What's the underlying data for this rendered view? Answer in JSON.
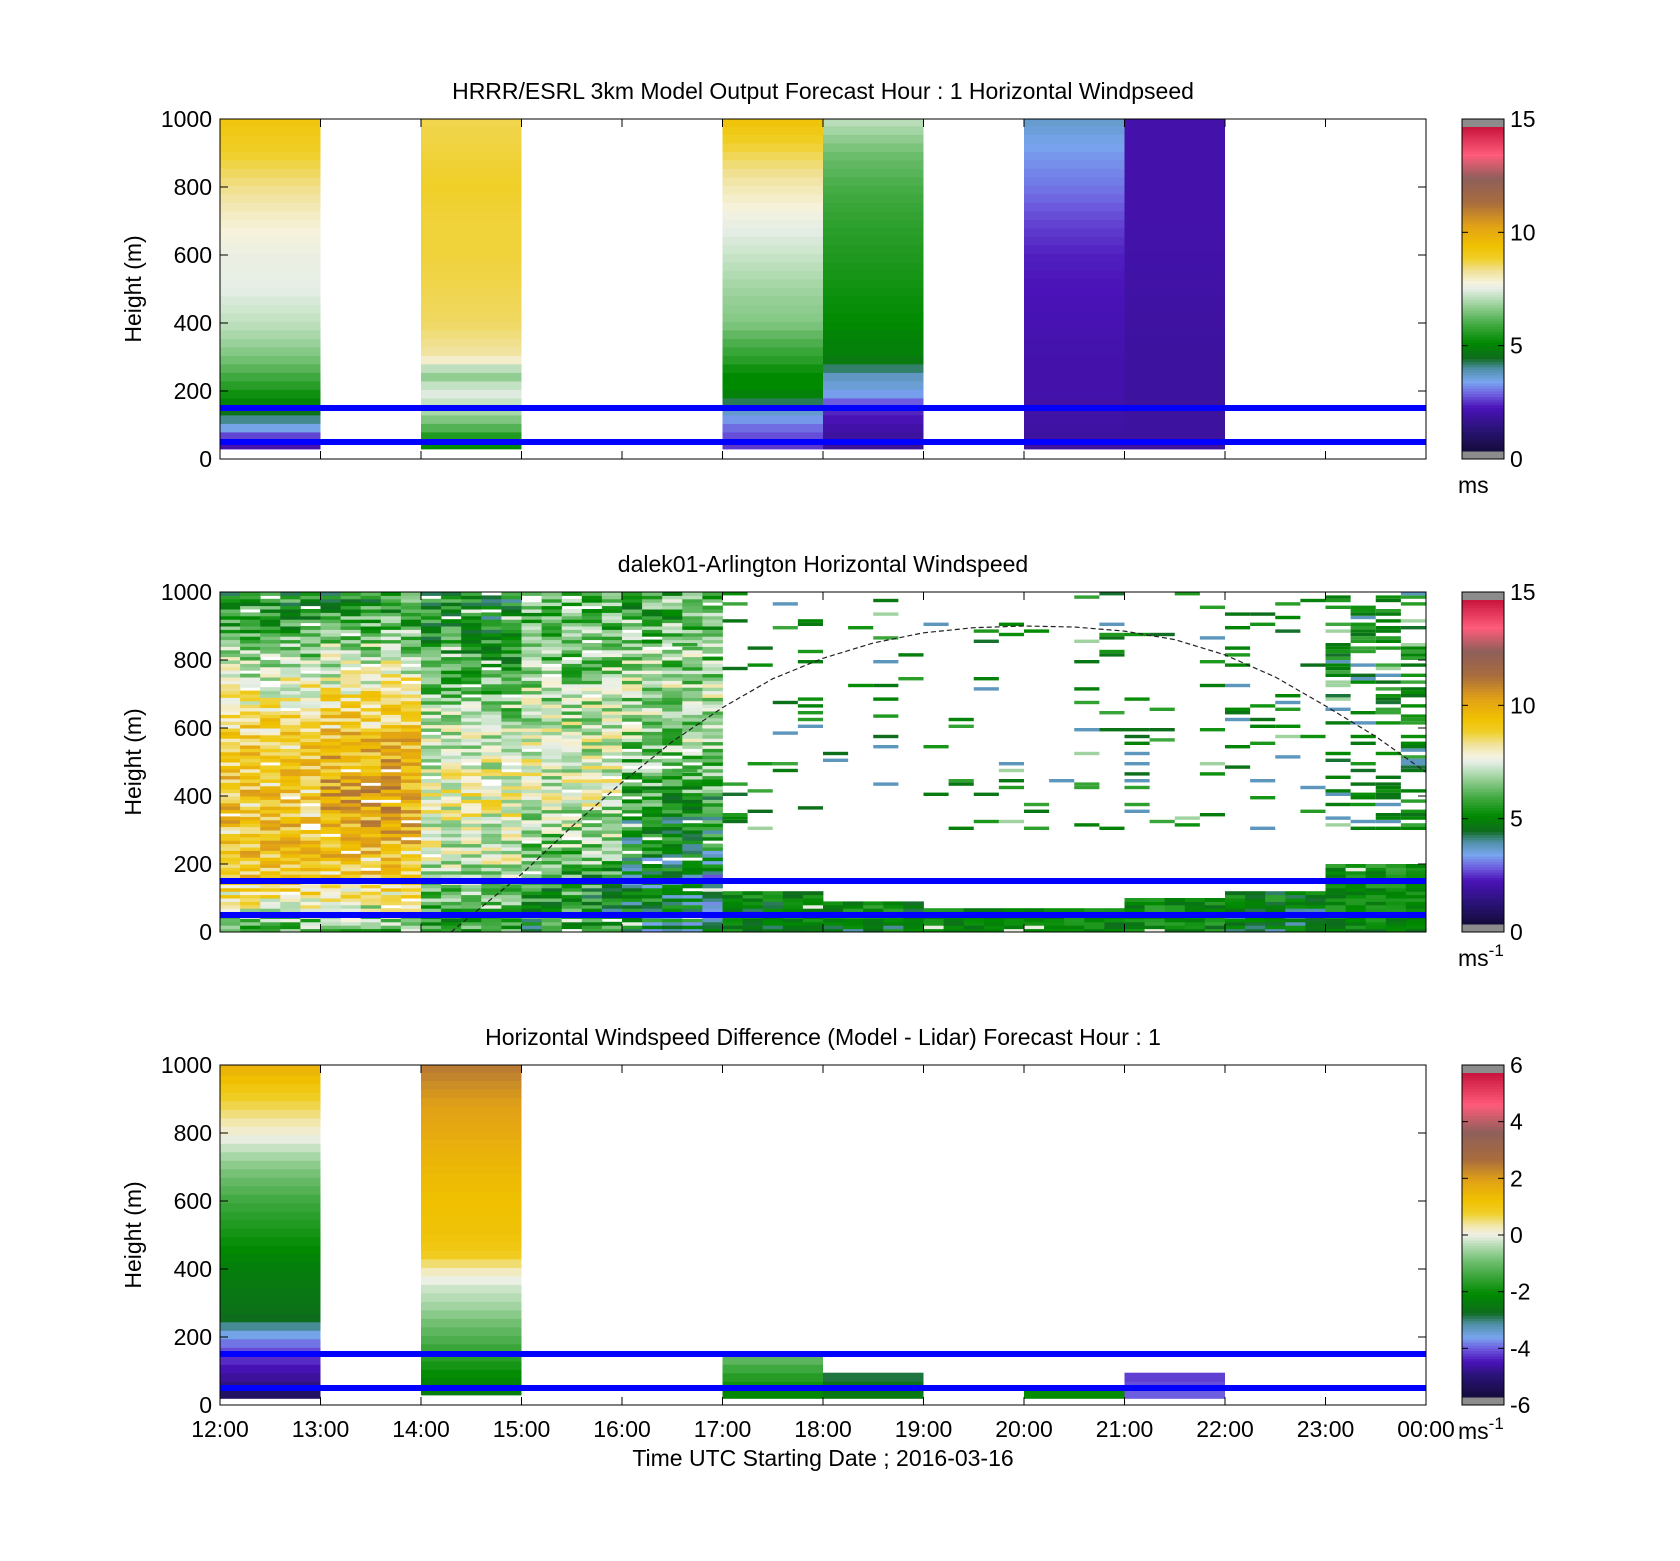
{
  "figure": {
    "xlabel": "Time UTC  Starting Date ; 2016-03-16"
  },
  "chart_data": [
    {
      "type": "heatmap",
      "title": "HRRR/ESRL 3km Model Output   Forecast Hour : 1 Horizontal Windpseed",
      "ylabel": "Height (m)",
      "ylim": [
        0,
        1000
      ],
      "yticks": [
        "0",
        "200",
        "400",
        "600",
        "800",
        "1000"
      ],
      "xlim_hours": [
        12,
        24
      ],
      "xticks": [
        "12:00",
        "13:00",
        "14:00",
        "15:00",
        "16:00",
        "17:00",
        "18:00",
        "19:00",
        "20:00",
        "21:00",
        "22:00",
        "23:00",
        "00:00"
      ],
      "show_xtick_labels": false,
      "colorbar": {
        "min": 0,
        "max": 15,
        "ticks": [
          "0",
          "5",
          "10",
          "15"
        ],
        "unit": "ms",
        "unit_sup": "",
        "scale": "speed"
      },
      "reference_lines_m": [
        50,
        150
      ],
      "sunline": false,
      "columns": [
        {
          "start_hour": 12.0,
          "end_hour": 13.0,
          "levels_m": [
            50,
            100,
            150,
            200,
            250,
            300,
            350,
            400,
            450,
            500,
            600,
            700,
            800,
            900,
            1000
          ],
          "values": [
            1.8,
            3.5,
            4.6,
            5.3,
            5.9,
            6.4,
            6.8,
            7.1,
            7.3,
            7.5,
            7.6,
            7.9,
            8.4,
            8.9,
            9.3
          ]
        },
        {
          "start_hour": 14.0,
          "end_hour": 15.0,
          "levels_m": [
            50,
            100,
            150,
            200,
            250,
            300,
            350,
            400,
            500,
            600,
            700,
            800,
            900,
            1000
          ],
          "values": [
            5.0,
            6.2,
            7.0,
            7.5,
            6.5,
            8.2,
            8.4,
            8.6,
            8.7,
            8.8,
            8.8,
            8.9,
            8.8,
            8.7
          ]
        },
        {
          "start_hour": 15.0,
          "end_hour": 17.0,
          "levels_m": [],
          "values": []
        },
        {
          "start_hour": 17.0,
          "end_hour": 18.0,
          "levels_m": [
            50,
            100,
            150,
            200,
            250,
            300,
            350,
            400,
            500,
            600,
            700,
            800,
            900,
            1000
          ],
          "values": [
            2.3,
            2.8,
            3.6,
            5.0,
            5.0,
            5.6,
            6.0,
            6.5,
            6.8,
            7.2,
            7.6,
            8.1,
            8.7,
            9.4
          ]
        },
        {
          "start_hour": 18.0,
          "end_hour": 19.0,
          "levels_m": [
            50,
            100,
            150,
            200,
            250,
            300,
            350,
            400,
            500,
            600,
            700,
            800,
            900,
            1000
          ],
          "values": [
            1.5,
            1.8,
            2.2,
            3.3,
            3.6,
            4.8,
            4.8,
            5.0,
            5.2,
            5.4,
            5.6,
            5.9,
            6.3,
            7.1
          ]
        },
        {
          "start_hour": 20.0,
          "end_hour": 21.0,
          "levels_m": [
            50,
            100,
            150,
            200,
            300,
            400,
            500,
            600,
            700,
            800,
            900,
            1000
          ],
          "values": [
            1.6,
            1.7,
            1.7,
            1.8,
            1.8,
            1.9,
            2.0,
            2.1,
            2.4,
            2.8,
            3.1,
            3.5
          ]
        },
        {
          "start_hour": 21.0,
          "end_hour": 22.0,
          "levels_m": [
            50,
            150,
            300,
            500,
            700,
            1000
          ],
          "values": [
            1.6,
            1.6,
            1.6,
            1.7,
            1.8,
            1.8
          ]
        }
      ]
    },
    {
      "type": "heatmap",
      "title": "dalek01-Arlington  Horizontal Windspeed",
      "ylabel": "Height (m)",
      "ylim": [
        0,
        1000
      ],
      "yticks": [
        "0",
        "200",
        "400",
        "600",
        "800",
        "1000"
      ],
      "xlim_hours": [
        12,
        24
      ],
      "xticks": [
        "12:00",
        "13:00",
        "14:00",
        "15:00",
        "16:00",
        "17:00",
        "18:00",
        "19:00",
        "20:00",
        "21:00",
        "22:00",
        "23:00",
        "00:00"
      ],
      "show_xtick_labels": false,
      "colorbar": {
        "min": 0,
        "max": 15,
        "ticks": [
          "0",
          "5",
          "10",
          "15"
        ],
        "unit": "ms",
        "unit_sup": "-1",
        "scale": "speed"
      },
      "reference_lines_m": [
        50,
        150
      ],
      "sunline": true,
      "sunline_points": [
        [
          14.3,
          0
        ],
        [
          15.0,
          170
        ],
        [
          15.5,
          310
        ],
        [
          16.0,
          440
        ],
        [
          16.5,
          560
        ],
        [
          17.0,
          660
        ],
        [
          17.5,
          745
        ],
        [
          18.0,
          805
        ],
        [
          18.5,
          850
        ],
        [
          19.0,
          880
        ],
        [
          19.5,
          895
        ],
        [
          20.0,
          900
        ],
        [
          20.5,
          897
        ],
        [
          21.0,
          885
        ],
        [
          21.5,
          860
        ],
        [
          22.0,
          815
        ],
        [
          22.5,
          750
        ],
        [
          23.0,
          665
        ],
        [
          23.5,
          575
        ],
        [
          24.0,
          470
        ]
      ],
      "profiles": [
        {
          "start_hour": 12.0,
          "end_hour": 13.0,
          "profile_m": [
            0,
            50,
            100,
            150,
            200,
            300,
            400,
            500,
            600,
            700,
            800,
            900,
            1000
          ],
          "profile_v": [
            5.8,
            7.0,
            8.3,
            9.0,
            9.3,
            9.5,
            9.4,
            9.2,
            8.9,
            8.0,
            6.8,
            5.5,
            5.2
          ],
          "noise": 1.3,
          "top_m": 1000
        },
        {
          "start_hour": 13.0,
          "end_hour": 14.0,
          "profile_m": [
            0,
            50,
            100,
            150,
            200,
            300,
            400,
            500,
            600,
            700,
            800,
            900,
            1000
          ],
          "profile_v": [
            5.6,
            7.0,
            8.2,
            8.9,
            9.3,
            9.9,
            10.2,
            9.9,
            9.2,
            8.3,
            7.2,
            6.0,
            5.2
          ],
          "noise": 1.4,
          "top_m": 1000
        },
        {
          "start_hour": 14.0,
          "end_hour": 15.0,
          "profile_m": [
            0,
            50,
            100,
            150,
            200,
            300,
            400,
            500,
            600,
            700,
            800,
            900,
            1000
          ],
          "profile_v": [
            5.4,
            5.8,
            6.3,
            6.8,
            7.2,
            7.6,
            7.9,
            7.5,
            7.0,
            6.3,
            5.6,
            5.1,
            4.9
          ],
          "noise": 1.3,
          "top_m": 1000
        },
        {
          "start_hour": 15.0,
          "end_hour": 16.0,
          "profile_m": [
            0,
            50,
            100,
            150,
            200,
            300,
            400,
            500,
            600,
            700,
            800,
            900,
            1000
          ],
          "profile_v": [
            5.1,
            5.1,
            5.4,
            5.6,
            6.0,
            6.8,
            7.4,
            7.5,
            7.2,
            6.8,
            6.4,
            6.2,
            6.0
          ],
          "noise": 1.4,
          "top_m": 1000
        },
        {
          "start_hour": 16.0,
          "end_hour": 17.0,
          "profile_m": [
            0,
            50,
            100,
            150,
            200,
            300,
            400,
            500,
            600,
            700,
            800,
            900,
            1000
          ],
          "profile_v": [
            4.5,
            4.2,
            4.6,
            3.8,
            4.5,
            5.0,
            5.6,
            6.2,
            6.8,
            7.0,
            6.6,
            6.0,
            5.6
          ],
          "noise": 1.5,
          "top_m": 1000
        },
        {
          "start_hour": 17.0,
          "end_hour": 18.0,
          "profile_m": [
            0,
            50,
            100,
            150
          ],
          "profile_v": [
            4.8,
            4.6,
            4.9,
            5.1
          ],
          "noise": 0.8,
          "top_m": 120
        },
        {
          "start_hour": 18.0,
          "end_hour": 19.0,
          "profile_m": [
            0,
            50,
            90
          ],
          "profile_v": [
            4.6,
            4.7,
            5.0
          ],
          "noise": 0.9,
          "top_m": 85
        },
        {
          "start_hour": 19.0,
          "end_hour": 20.0,
          "profile_m": [
            0,
            50,
            80
          ],
          "profile_v": [
            4.7,
            4.9,
            5.0
          ],
          "noise": 0.7,
          "top_m": 70
        },
        {
          "start_hour": 20.0,
          "end_hour": 21.0,
          "profile_m": [
            0,
            50,
            80
          ],
          "profile_v": [
            4.8,
            4.9,
            5.0
          ],
          "noise": 0.6,
          "top_m": 70
        },
        {
          "start_hour": 21.0,
          "end_hour": 22.0,
          "profile_m": [
            0,
            50,
            100
          ],
          "profile_v": [
            4.9,
            5.0,
            5.0
          ],
          "noise": 0.7,
          "top_m": 100
        },
        {
          "start_hour": 22.0,
          "end_hour": 23.0,
          "profile_m": [
            0,
            50,
            100,
            150
          ],
          "profile_v": [
            4.5,
            4.6,
            4.8,
            5.0
          ],
          "noise": 0.9,
          "top_m": 120
        },
        {
          "start_hour": 23.0,
          "end_hour": 24.0,
          "profile_m": [
            0,
            50,
            100,
            150,
            200
          ],
          "profile_v": [
            4.8,
            5.0,
            5.0,
            5.0,
            5.3
          ],
          "noise": 0.6,
          "top_m": 200
        }
      ],
      "sparse_layer": {
        "start_hour": 16.5,
        "end_hour": 24.0,
        "min_m": 300,
        "max_m": 1000,
        "default_value": 5.0
      }
    },
    {
      "type": "heatmap",
      "title": "Horizontal Windspeed Difference (Model - Lidar) Forecast Hour : 1",
      "ylabel": "Height (m)",
      "ylim": [
        0,
        1000
      ],
      "yticks": [
        "0",
        "200",
        "400",
        "600",
        "800",
        "1000"
      ],
      "xlim_hours": [
        12,
        24
      ],
      "xticks": [
        "12:00",
        "13:00",
        "14:00",
        "15:00",
        "16:00",
        "17:00",
        "18:00",
        "19:00",
        "20:00",
        "21:00",
        "22:00",
        "23:00",
        "00:00"
      ],
      "show_xtick_labels": true,
      "colorbar": {
        "min": -6,
        "max": 6,
        "ticks": [
          "-6",
          "-4",
          "-2",
          "0",
          "2",
          "4",
          "6"
        ],
        "unit": "ms",
        "unit_sup": "-1",
        "scale": "diff"
      },
      "reference_lines_m": [
        50,
        150
      ],
      "sunline": false,
      "columns": [
        {
          "start_hour": 12.0,
          "end_hour": 13.0,
          "levels_m": [
            30,
            50,
            100,
            150,
            200,
            250,
            300,
            350,
            400,
            500,
            600,
            700,
            800,
            900,
            1000
          ],
          "values": [
            -5.5,
            -5.2,
            -4.8,
            -4.4,
            -3.9,
            -2.9,
            -2.7,
            -2.6,
            -2.5,
            -2.0,
            -1.5,
            -0.8,
            0.1,
            0.8,
            1.7
          ]
        },
        {
          "start_hour": 14.0,
          "end_hour": 15.0,
          "levels_m": [
            50,
            100,
            150,
            200,
            250,
            300,
            350,
            400,
            450,
            500,
            600,
            700,
            800,
            900,
            1000
          ],
          "values": [
            -2.5,
            -2.1,
            -1.7,
            -1.3,
            -0.9,
            -0.5,
            -0.2,
            0.3,
            1.0,
            1.2,
            1.3,
            1.5,
            1.8,
            2.1,
            2.6
          ]
        },
        {
          "start_hour": 17.0,
          "end_hour": 18.0,
          "levels_m": [
            30,
            60,
            100,
            140
          ],
          "values": [
            -2.3,
            -2.0,
            -1.6,
            -1.1
          ]
        },
        {
          "start_hour": 18.0,
          "end_hour": 19.0,
          "levels_m": [
            30,
            60,
            80
          ],
          "values": [
            -2.6,
            -2.8,
            -3.0
          ]
        },
        {
          "start_hour": 20.0,
          "end_hour": 21.0,
          "levels_m": [
            20,
            35
          ],
          "values": [
            -2.0,
            -2.2
          ]
        },
        {
          "start_hour": 21.0,
          "end_hour": 22.0,
          "levels_m": [
            30,
            60,
            80
          ],
          "values": [
            -4.2,
            -4.3,
            -4.4
          ]
        }
      ]
    }
  ]
}
